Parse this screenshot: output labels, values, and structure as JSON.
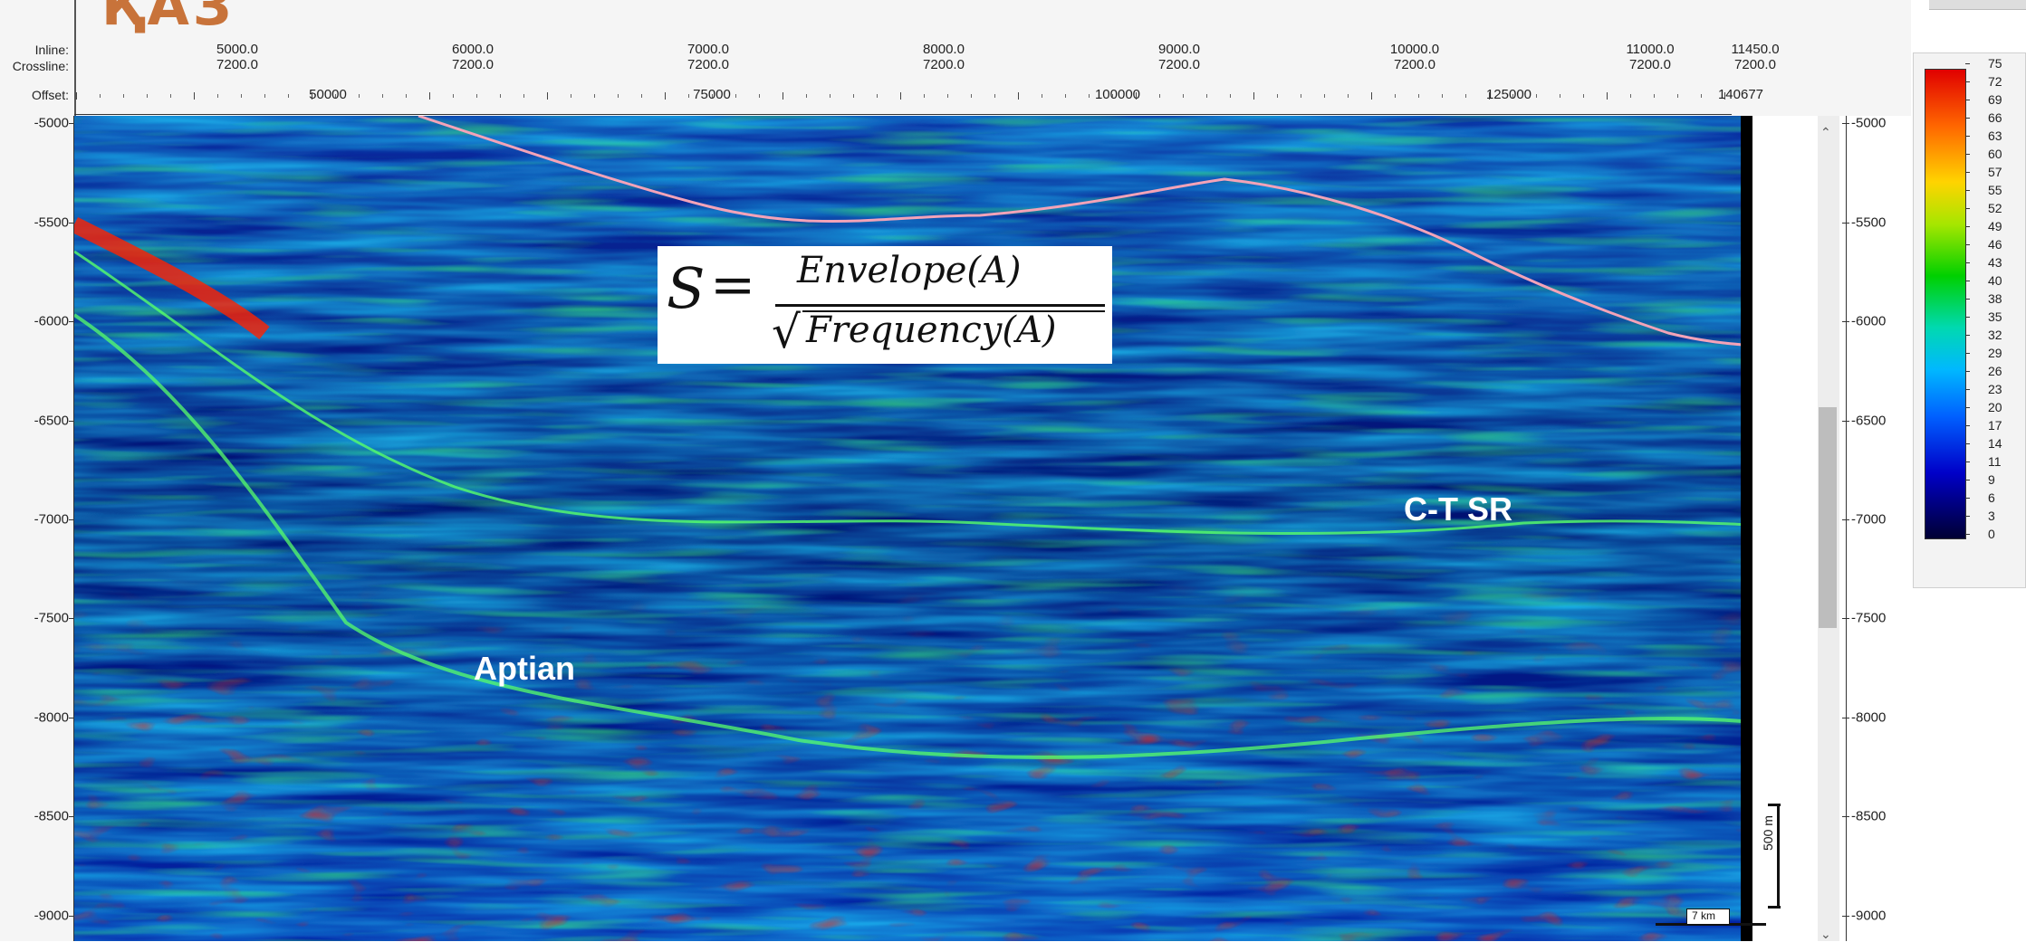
{
  "logo": {
    "text": "ҚАЗ"
  },
  "header": {
    "row_labels": [
      "Inline:",
      "Crossline:",
      "Offset:"
    ],
    "columns": [
      {
        "inline": "5000.0",
        "crossline": "7200.0"
      },
      {
        "inline": "6000.0",
        "crossline": "7200.0"
      },
      {
        "inline": "7000.0",
        "crossline": "7200.0"
      },
      {
        "inline": "8000.0",
        "crossline": "7200.0"
      },
      {
        "inline": "9000.0",
        "crossline": "7200.0"
      },
      {
        "inline": "10000.0",
        "crossline": "7200.0"
      },
      {
        "inline": "11000.0",
        "crossline": "7200.0"
      },
      {
        "inline": "11450.0",
        "crossline": "7200.0"
      }
    ],
    "offsets": [
      "50000",
      "75000",
      "100000",
      "125000",
      "140677"
    ]
  },
  "depth_axis": {
    "labels": [
      "-5000",
      "-5500",
      "-6000",
      "-6500",
      "-7000",
      "-7500",
      "-8000",
      "-8500",
      "-9000"
    ]
  },
  "colorbar": {
    "labels": [
      "75",
      "72",
      "69",
      "66",
      "63",
      "60",
      "57",
      "55",
      "52",
      "49",
      "46",
      "43",
      "40",
      "38",
      "35",
      "32",
      "29",
      "26",
      "23",
      "20",
      "17",
      "14",
      "11",
      "9",
      "6",
      "3",
      "0"
    ],
    "colors": [
      "#e00000",
      "#ff6600",
      "#ffd400",
      "#a6e600",
      "#00d000",
      "#00d9b0",
      "#00b8ff",
      "#0060ff",
      "#0000c8",
      "#000033"
    ]
  },
  "formula": {
    "lhs": "S",
    "equals": "=",
    "numerator": "Envelope(A)",
    "denominator": "Frequency(A)",
    "root_symbol": "√"
  },
  "annotations": {
    "aptian": "Aptian",
    "ct_sr": "C-T SR"
  },
  "scale_bars": {
    "vertical": "500 m",
    "horizontal": "7 km"
  },
  "scrollbar": {
    "up_icon": "⌃",
    "down_icon": "⌄"
  }
}
